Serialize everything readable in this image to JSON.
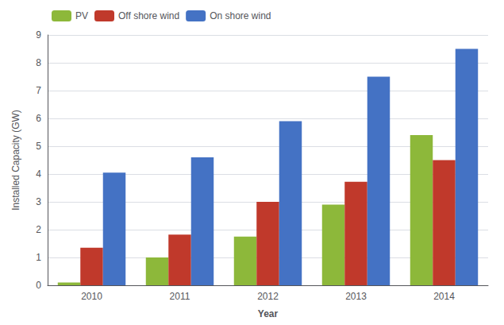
{
  "chart_data": {
    "type": "bar",
    "categories": [
      "2010",
      "2011",
      "2012",
      "2013",
      "2014"
    ],
    "series": [
      {
        "name": "PV",
        "color": "#8db83a",
        "values": [
          0.1,
          1.0,
          1.75,
          2.9,
          5.4
        ]
      },
      {
        "name": "Off shore wind",
        "color": "#c0392b",
        "values": [
          1.35,
          1.82,
          3.0,
          3.72,
          4.5
        ]
      },
      {
        "name": "On shore wind",
        "color": "#4472c4",
        "values": [
          4.05,
          4.6,
          5.9,
          7.5,
          8.5
        ]
      }
    ],
    "xlabel": "Year",
    "ylabel": "Installed Capacity (GW)",
    "ylim": [
      0,
      9
    ],
    "yticks": [
      0,
      1,
      2,
      3,
      4,
      5,
      6,
      7,
      8,
      9
    ],
    "grid": true,
    "legend": "upper left"
  }
}
